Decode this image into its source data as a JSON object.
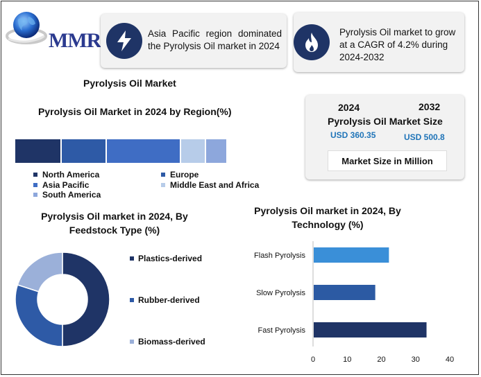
{
  "logo": {
    "text": "MMR"
  },
  "card1": {
    "text": "Asia Pacific region dominated the Pyrolysis Oil market in 2024",
    "line1": "Asia Pacific region dominated",
    "line2": "the Pyrolysis Oil market in 2024",
    "icon": "lightning-icon"
  },
  "card2": {
    "line1": "Pyrolysis Oil market to grow",
    "line2": "at a CAGR of 4.2% during",
    "line3": "2024-2032",
    "icon": "flame-icon"
  },
  "main_title": "Pyrolysis Oil Market",
  "market_size": {
    "year1": "2024",
    "year2": "2032",
    "title": "Pyrolysis Oil Market Size",
    "value1": "USD 360.35",
    "value2": "USD 500.8",
    "note": "Market Size in Million"
  },
  "colors": {
    "navy": "#1f3466",
    "blue": "#2e5aa6",
    "mid_blue": "#3f6dc4",
    "light": "#b7cce9",
    "lavender": "#8da7dc",
    "flash": "#3a8fd8",
    "slow": "#2c5aa3",
    "fast": "#1f3466",
    "biomass": "#9bb0d9"
  },
  "chart_data": [
    {
      "type": "bar",
      "orientation": "horizontal-stacked",
      "title": "Pyrolysis Oil Market in 2024 by Region(%)",
      "categories": [
        "North America",
        "Europe",
        "Asia Pacific",
        "Middle East and Africa",
        "South America"
      ],
      "values": [
        22,
        21,
        35,
        12,
        10
      ],
      "colors": [
        "#1f3466",
        "#2e5aa6",
        "#3f6dc4",
        "#b7cce9",
        "#8da7dc"
      ],
      "legend": "bottom"
    },
    {
      "type": "pie",
      "donut": true,
      "title": "Pyrolysis Oil market in 2024, By Feedstock Type (%)",
      "categories": [
        "Plastics-derived",
        "Rubber-derived",
        "Biomass-derived"
      ],
      "values": [
        50,
        30,
        20
      ],
      "colors": [
        "#1f3466",
        "#2e5aa6",
        "#9bb0d9"
      ],
      "legend": "right"
    },
    {
      "type": "bar",
      "orientation": "horizontal",
      "title": "Pyrolysis Oil market in 2024, By Technology (%)",
      "categories": [
        "Flash Pyrolysis",
        "Slow Pyrolysis",
        "Fast Pyrolysis"
      ],
      "values": [
        22,
        18,
        33
      ],
      "colors": [
        "#3a8fd8",
        "#2c5aa3",
        "#1f3466"
      ],
      "xlim": [
        0,
        40
      ],
      "xticks": [
        0,
        10,
        20,
        30,
        40
      ],
      "grid": false
    }
  ]
}
